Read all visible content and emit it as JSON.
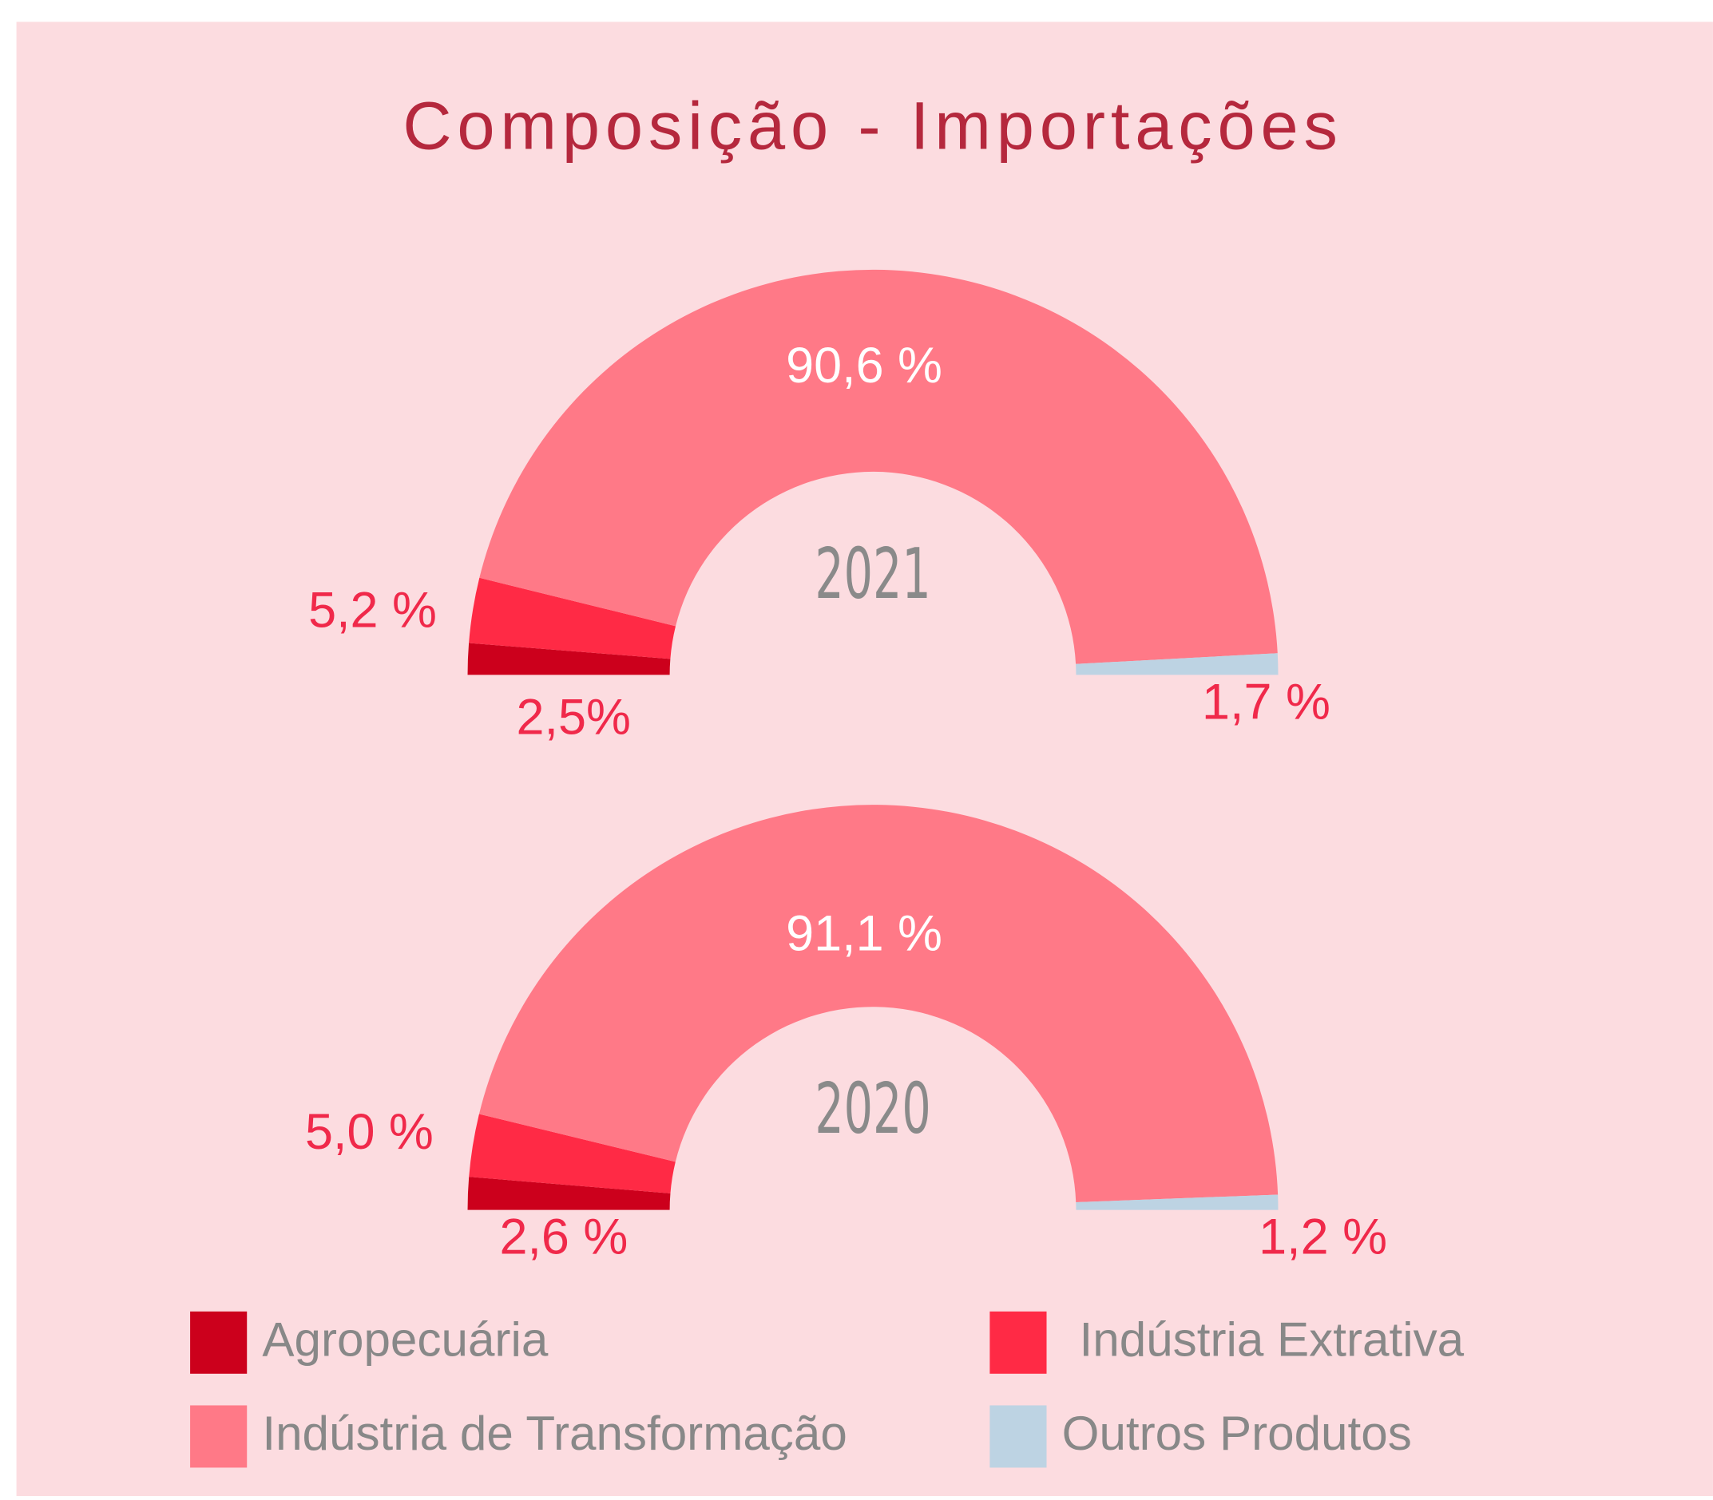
{
  "title": "Composição - Importações",
  "chart_data": [
    {
      "type": "pie",
      "label": "2021",
      "categories": [
        "Agropecuária",
        "Indústria Extrativa",
        "Indústria de Transformação",
        "Outros Produtos"
      ],
      "values": [
        2.5,
        5.2,
        90.6,
        1.7
      ],
      "value_labels": [
        "2,5%",
        "5,2 %",
        "90,6 %",
        "1,7 %"
      ],
      "colors": [
        "#cc001c",
        "#ff2a45",
        "#ff7987",
        "#bdd3e3"
      ]
    },
    {
      "type": "pie",
      "label": "2020",
      "categories": [
        "Agropecuária",
        "Indústria Extrativa",
        "Indústria de Transformação",
        "Outros Produtos"
      ],
      "values": [
        2.6,
        5.0,
        91.1,
        1.2
      ],
      "value_labels": [
        "2,6 %",
        "5,0 %",
        "91,1 %",
        "1,2 %"
      ],
      "colors": [
        "#cc001c",
        "#ff2a45",
        "#ff7987",
        "#bdd3e3"
      ]
    }
  ]
}
